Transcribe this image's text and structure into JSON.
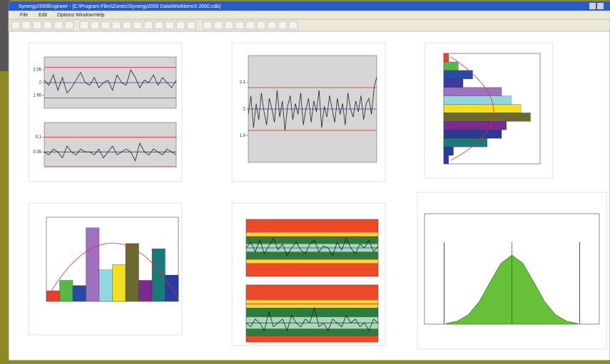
{
  "window": {
    "title": "Synergy2000Engineer - [C:\\Program Files\\Zontec\\Synergy2000 Data\\Workbench 2000.cdb]",
    "menu": [
      "File",
      "Edit",
      "Options",
      "Window",
      "Help"
    ]
  },
  "chart_data": [
    {
      "type": "line",
      "ylim": [
        1.9,
        2.1
      ],
      "yticks": [
        1.95,
        2.0,
        2.05
      ],
      "limits": [
        2.06,
        2.0,
        1.94
      ],
      "values": [
        2.01,
        1.99,
        2.03,
        1.97,
        2.02,
        1.96,
        1.98,
        2.01,
        2.04,
        2.0,
        1.99,
        2.02,
        1.98,
        2.0,
        2.01,
        1.97,
        2.03,
        2.0,
        1.99,
        2.05,
        2.02,
        1.98,
        2.01,
        2.0,
        2.03,
        1.99,
        2.02,
        2.0,
        1.98,
        2.01
      ]
    },
    {
      "type": "line",
      "ylim": [
        0,
        0.15
      ],
      "yticks": [
        0.05,
        0.1
      ],
      "limits": [
        0.1,
        0.05,
        0
      ],
      "values": [
        0.05,
        0.04,
        0.06,
        0.05,
        0.03,
        0.07,
        0.05,
        0.04,
        0.06,
        0.05,
        0.05,
        0.04,
        0.06,
        0.03,
        0.05,
        0.07,
        0.04,
        0.05,
        0.06,
        0.05,
        0.02,
        0.08,
        0.05,
        0.04,
        0.06,
        0.05,
        0.04,
        0.06,
        0.05,
        0.04
      ]
    },
    {
      "type": "line",
      "ylim": [
        1.8,
        2.2
      ],
      "yticks": [
        1.9,
        2.0,
        2.1
      ],
      "limits": [
        2.08,
        2.0,
        1.92
      ],
      "values": [
        1.98,
        2.05,
        1.93,
        2.02,
        1.96,
        2.06,
        1.99,
        1.94,
        2.04,
        2.0,
        1.95,
        2.07,
        1.97,
        2.03,
        1.92,
        2.01,
        2.05,
        1.96,
        2.02,
        1.98,
        2.06,
        1.94,
        2.0,
        2.04,
        1.95,
        2.03,
        1.99,
        2.07,
        1.93,
        2.01,
        1.97,
        2.05,
        2.0,
        1.95,
        2.04,
        1.98,
        2.02,
        1.94,
        2.06,
        2.0,
        1.97,
        2.03,
        1.99,
        2.05,
        1.96,
        2.02,
        2.04,
        1.98,
        2.08,
        2.12
      ]
    },
    {
      "type": "hbar",
      "xlim": [
        0,
        20
      ],
      "values": [
        1,
        3,
        6,
        4,
        12,
        14,
        16,
        18,
        13,
        12,
        9,
        2,
        1
      ],
      "colors": [
        "#e8402a",
        "#55b848",
        "#2a4aa8",
        "#3a3aa0",
        "#a070c0",
        "#90d8e0",
        "#f4e020",
        "#6a6a30",
        "#7a2a90",
        "#2a3a90",
        "#1a7a7a",
        "#2a3aa0",
        "#2a3aa0"
      ]
    },
    {
      "type": "vbar",
      "ylim": [
        0,
        16
      ],
      "values": [
        2,
        4,
        3,
        14,
        6,
        7,
        11,
        4,
        10,
        5
      ],
      "colors": [
        "#e8402a",
        "#55b848",
        "#2a4aa8",
        "#a070c0",
        "#90d8e0",
        "#f4e020",
        "#6a6a30",
        "#7a2a90",
        "#1a7a7a",
        "#2a3aa0"
      ]
    },
    {
      "type": "zone",
      "ylim": [
        1.85,
        2.15
      ],
      "limits": [
        2.06,
        2.0,
        1.94
      ],
      "zones": [
        {
          "from": 2.08,
          "to": 2.15,
          "color": "#ee4a2a"
        },
        {
          "from": 2.06,
          "to": 2.08,
          "color": "#f4e030"
        },
        {
          "from": 2.02,
          "to": 2.06,
          "color": "#2f7a3f"
        },
        {
          "from": 1.98,
          "to": 2.02,
          "color": "#a8d8b8"
        },
        {
          "from": 1.94,
          "to": 1.98,
          "color": "#2f7a3f"
        },
        {
          "from": 1.92,
          "to": 1.94,
          "color": "#f4e030"
        },
        {
          "from": 1.85,
          "to": 1.92,
          "color": "#ee4a2a"
        }
      ],
      "values": [
        2.0,
        2.03,
        1.98,
        2.04,
        1.97,
        2.01,
        2.05,
        1.99,
        2.02,
        1.96,
        2.0,
        2.03,
        1.99,
        1.97,
        2.02,
        2.04,
        1.98,
        2.01,
        2.0,
        1.96,
        2.03,
        1.99,
        2.05,
        2.0,
        1.97,
        2.02,
        2.0,
        2.04,
        1.98,
        2.01
      ]
    },
    {
      "type": "zone",
      "ylim": [
        0,
        0.15
      ],
      "limits": [
        0.1,
        0.05,
        0
      ],
      "zones": [
        {
          "from": 0.11,
          "to": 0.15,
          "color": "#ee4a2a"
        },
        {
          "from": 0.09,
          "to": 0.11,
          "color": "#f4e030"
        },
        {
          "from": 0.065,
          "to": 0.09,
          "color": "#2f7a3f"
        },
        {
          "from": 0.035,
          "to": 0.065,
          "color": "#a8d8b8"
        },
        {
          "from": 0.015,
          "to": 0.035,
          "color": "#2f7a3f"
        },
        {
          "from": 0,
          "to": 0.015,
          "color": "#ee4a2a"
        }
      ],
      "values": [
        0.05,
        0.04,
        0.06,
        0.05,
        0.03,
        0.08,
        0.04,
        0.05,
        0.06,
        0.03,
        0.07,
        0.05,
        0.04,
        0.06,
        0.05,
        0.09,
        0.04,
        0.05,
        0.03,
        0.06,
        0.05,
        0.04,
        0.07,
        0.05,
        0.06,
        0.04,
        0.05,
        0.03,
        0.06,
        0.05
      ]
    },
    {
      "type": "area",
      "xlim": [
        -4,
        4
      ],
      "ylim": [
        0,
        1.6
      ],
      "limits": [
        -3.1,
        0,
        3.1
      ],
      "x": [
        -3,
        -2.5,
        -2,
        -1.5,
        -1,
        -0.5,
        0,
        0.5,
        1,
        1.5,
        2,
        2.5,
        3
      ],
      "values": [
        0.011,
        0.044,
        0.135,
        0.325,
        0.607,
        0.882,
        1,
        0.882,
        0.607,
        0.325,
        0.135,
        0.044,
        0.011
      ]
    }
  ]
}
